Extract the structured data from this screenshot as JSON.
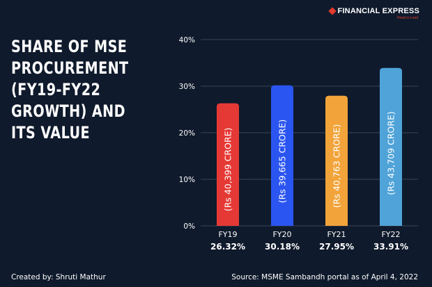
{
  "brand": {
    "name": "FINANCIAL EXPRESS",
    "tagline": "Read to Lead"
  },
  "headline": {
    "lines": [
      "SHARE OF MSE",
      "PROCUREMENT",
      "(FY19-FY22",
      "GROWTH) AND",
      "ITS VALUE"
    ]
  },
  "footer": {
    "credit": "Created by: Shruti Mathur",
    "source": "Source: MSME Sambandh portal as of April 4, 2022"
  },
  "colors": {
    "background": "#0f1a2c",
    "grid": "#3a4556",
    "bars": [
      "#e53935",
      "#2b55f0",
      "#f2a43a",
      "#4fa3d8"
    ]
  },
  "chart_data": {
    "type": "bar",
    "categories": [
      "FY19",
      "FY20",
      "FY21",
      "FY22"
    ],
    "values": [
      26.32,
      30.18,
      27.95,
      33.91
    ],
    "value_labels": [
      "26.32%",
      "30.18%",
      "27.95%",
      "33.91%"
    ],
    "bar_annotations": [
      "(Rs 40,399 CRORE)",
      "(Rs 39,665 CRORE)",
      "(Rs 40,763 CRORE)",
      "(Rs 43,709 CRORE)"
    ],
    "y_ticks": [
      "0%",
      "10%",
      "20%",
      "30%",
      "40%"
    ],
    "ylim": [
      0,
      40
    ],
    "grid": true,
    "title": "",
    "xlabel": "",
    "ylabel": ""
  }
}
